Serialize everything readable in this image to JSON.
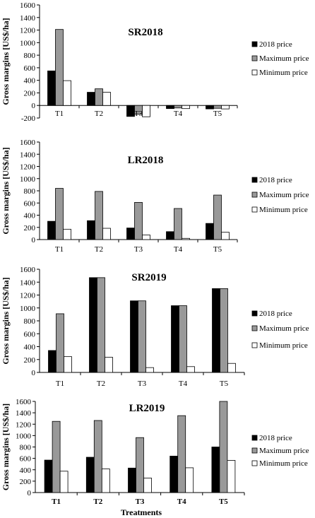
{
  "figure": {
    "panels": [
      {
        "type": "bar",
        "title": "SR2018",
        "ylabel": "Gross margins [US$/ha]",
        "xlabel": "",
        "categories": [
          "T1",
          "T2",
          "T3",
          "T4",
          "T5"
        ],
        "ylim": [
          -200,
          1600
        ],
        "yticks": [
          -200,
          0,
          200,
          400,
          600,
          800,
          1000,
          1200,
          1400,
          1600
        ],
        "series": [
          {
            "name": "2018 price",
            "color": "#000000",
            "values": [
              550,
              210,
              -175,
              -50,
              -55
            ]
          },
          {
            "name": "Maximum price",
            "color": "#999999",
            "values": [
              1210,
              265,
              -140,
              -40,
              -45
            ]
          },
          {
            "name": "Minimum price",
            "color": "#ffffff",
            "values": [
              395,
              210,
              -180,
              -50,
              -55
            ]
          }
        ],
        "legend": "right",
        "bold_categories": false
      },
      {
        "type": "bar",
        "title": "LR2018",
        "ylabel": "Gross margins [US$/ha]",
        "xlabel": "",
        "categories": [
          "T1",
          "T2",
          "T3",
          "T4",
          "T5"
        ],
        "ylim": [
          0,
          1600
        ],
        "yticks": [
          0,
          200,
          400,
          600,
          800,
          1000,
          1200,
          1400,
          1600
        ],
        "series": [
          {
            "name": "2018 price",
            "color": "#000000",
            "values": [
              300,
              310,
              190,
              130,
              265
            ]
          },
          {
            "name": "Maximum price",
            "color": "#999999",
            "values": [
              840,
              790,
              610,
              510,
              730
            ]
          },
          {
            "name": "Minimum price",
            "color": "#ffffff",
            "values": [
              170,
              185,
              75,
              20,
              120
            ]
          }
        ],
        "legend": "right",
        "bold_categories": false
      },
      {
        "type": "bar",
        "title": "SR2019",
        "ylabel": "Gross margins [US$/ha]",
        "xlabel": "",
        "categories": [
          "T1",
          "T2",
          "T3",
          "T4",
          "T5"
        ],
        "ylim": [
          0,
          1600
        ],
        "yticks": [
          0,
          200,
          400,
          600,
          800,
          1000,
          1200,
          1400,
          1600
        ],
        "series": [
          {
            "name": "2018 price",
            "color": "#000000",
            "values": [
              340,
              1470,
              1110,
              1035,
              1300
            ]
          },
          {
            "name": "Maximum price",
            "color": "#999999",
            "values": [
              910,
              1470,
              1110,
              1035,
              1300
            ]
          },
          {
            "name": "Minimum price",
            "color": "#ffffff",
            "values": [
              245,
              235,
              75,
              90,
              140
            ]
          }
        ],
        "legend": "right",
        "bold_categories": false
      },
      {
        "type": "bar",
        "title": "LR2019",
        "ylabel": "Gross margins [US$/ha]",
        "xlabel": "Treatments",
        "categories": [
          "T1",
          "T2",
          "T3",
          "T4",
          "T5"
        ],
        "ylim": [
          0,
          1600
        ],
        "yticks": [
          0,
          200,
          400,
          600,
          800,
          1000,
          1200,
          1400,
          1600
        ],
        "series": [
          {
            "name": "2018 price",
            "color": "#000000",
            "values": [
              570,
              620,
              430,
              640,
              800
            ]
          },
          {
            "name": "Maximum price",
            "color": "#999999",
            "values": [
              1250,
              1265,
              965,
              1350,
              1600
            ]
          },
          {
            "name": "Minimum price",
            "color": "#ffffff",
            "values": [
              375,
              415,
              255,
              435,
              565
            ]
          }
        ],
        "legend": "right",
        "bold_categories": true
      }
    ]
  },
  "chart_data": [
    {
      "type": "bar",
      "title": "SR2018",
      "ylabel": "Gross margins [US$/ha]",
      "xlabel": "",
      "categories": [
        "T1",
        "T2",
        "T3",
        "T4",
        "T5"
      ],
      "ylim": [
        -200,
        1600
      ],
      "series": [
        {
          "name": "2018 price",
          "values": [
            550,
            210,
            -175,
            -50,
            -55
          ]
        },
        {
          "name": "Maximum price",
          "values": [
            1210,
            265,
            -140,
            -40,
            -45
          ]
        },
        {
          "name": "Minimum price",
          "values": [
            395,
            210,
            -180,
            -50,
            -55
          ]
        }
      ],
      "legend": "right",
      "grid": false
    },
    {
      "type": "bar",
      "title": "LR2018",
      "ylabel": "Gross margins [US$/ha]",
      "xlabel": "",
      "categories": [
        "T1",
        "T2",
        "T3",
        "T4",
        "T5"
      ],
      "ylim": [
        0,
        1600
      ],
      "series": [
        {
          "name": "2018 price",
          "values": [
            300,
            310,
            190,
            130,
            265
          ]
        },
        {
          "name": "Maximum price",
          "values": [
            840,
            790,
            610,
            510,
            730
          ]
        },
        {
          "name": "Minimum price",
          "values": [
            170,
            185,
            75,
            20,
            120
          ]
        }
      ],
      "legend": "right",
      "grid": false
    },
    {
      "type": "bar",
      "title": "SR2019",
      "ylabel": "Gross margins [US$/ha]",
      "xlabel": "",
      "categories": [
        "T1",
        "T2",
        "T3",
        "T4",
        "T5"
      ],
      "ylim": [
        0,
        1600
      ],
      "series": [
        {
          "name": "2018 price",
          "values": [
            340,
            1470,
            1110,
            1035,
            1300
          ]
        },
        {
          "name": "Maximum price",
          "values": [
            910,
            1470,
            1110,
            1035,
            1300
          ]
        },
        {
          "name": "Minimum price",
          "values": [
            245,
            235,
            75,
            90,
            140
          ]
        }
      ],
      "legend": "right",
      "grid": false
    },
    {
      "type": "bar",
      "title": "LR2019",
      "ylabel": "Gross margins [US$/ha]",
      "xlabel": "Treatments",
      "categories": [
        "T1",
        "T2",
        "T3",
        "T4",
        "T5"
      ],
      "ylim": [
        0,
        1600
      ],
      "series": [
        {
          "name": "2018 price",
          "values": [
            570,
            620,
            430,
            640,
            800
          ]
        },
        {
          "name": "Maximum price",
          "values": [
            1250,
            1265,
            965,
            1350,
            1600
          ]
        },
        {
          "name": "Minimum price",
          "values": [
            375,
            415,
            255,
            435,
            565
          ]
        }
      ],
      "legend": "right",
      "grid": false
    }
  ]
}
